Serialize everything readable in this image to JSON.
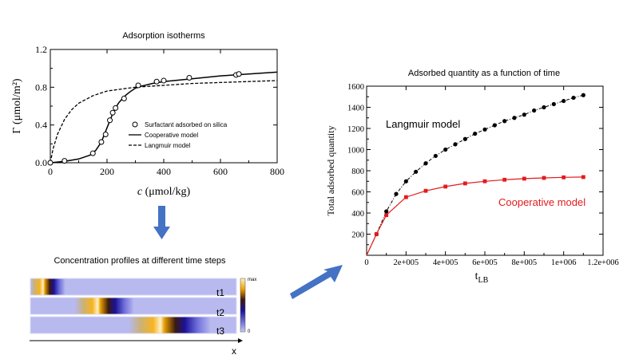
{
  "colors": {
    "arrow": "#4472c4",
    "cooperative": "#e31a1c",
    "langmuir": "#000000",
    "band_bg": "#b7b9ef",
    "peak_dark": "#1a1196",
    "peak_hot": "#f2a000"
  },
  "left_chart": {
    "title": "Adsorption isotherms",
    "ylabel": "Γ (μmol/m²)",
    "xlabel_italic": "c",
    "xlabel_rest": " (μmol/kg)",
    "xticks": [
      "0",
      "200",
      "400",
      "600",
      "800"
    ],
    "yticks": [
      "0.0",
      "0.4",
      "0.8",
      "1.2"
    ],
    "legend": [
      {
        "label": "Surfactant adsorbed on silica",
        "style": "circle"
      },
      {
        "label": "Cooperative model",
        "style": "solid"
      },
      {
        "label": "Langmuir model",
        "style": "dashed"
      }
    ]
  },
  "right_chart": {
    "title": "Adsorbed quantity as a function of time",
    "ylabel": "Total adsorbed quantity",
    "xlabel_main": "t",
    "xlabel_sub": "LB",
    "xticks": [
      "0",
      "2e+005",
      "4e+005",
      "6e+005",
      "8e+005",
      "1e+006",
      "1.2e+006"
    ],
    "yticks": [
      "200",
      "400",
      "600",
      "800",
      "1000",
      "1200",
      "1400",
      "1600"
    ],
    "annotation_langmuir": "Langmuir model",
    "annotation_cooperative": "Cooperative model"
  },
  "profiles": {
    "title": "Concentration profiles at different time steps",
    "labels": [
      "t1",
      "t2",
      "t3"
    ],
    "colorbar_max": "max",
    "colorbar_min": "0",
    "axis_label": "x",
    "peak_positions": [
      0.07,
      0.34,
      0.65
    ]
  },
  "chart_data": [
    {
      "type": "scatter",
      "title": "Adsorption isotherms",
      "xlabel": "c (μmol/kg)",
      "ylabel": "Γ (μmol/m²)",
      "xlim": [
        0,
        800
      ],
      "ylim": [
        0,
        1.2
      ],
      "series": [
        {
          "name": "Surfactant adsorbed on silica",
          "x": [
            0,
            50,
            150,
            180,
            195,
            210,
            220,
            230,
            260,
            310,
            375,
            400,
            490,
            655,
            665
          ],
          "y": [
            0.0,
            0.02,
            0.1,
            0.22,
            0.3,
            0.45,
            0.53,
            0.58,
            0.68,
            0.82,
            0.86,
            0.87,
            0.9,
            0.93,
            0.94
          ]
        },
        {
          "name": "Cooperative model",
          "x": [
            0,
            50,
            100,
            140,
            160,
            180,
            200,
            220,
            240,
            260,
            280,
            300,
            320,
            360,
            400,
            500,
            600,
            700,
            800
          ],
          "y": [
            0.0,
            0.015,
            0.04,
            0.08,
            0.13,
            0.22,
            0.37,
            0.52,
            0.63,
            0.7,
            0.75,
            0.79,
            0.81,
            0.84,
            0.86,
            0.89,
            0.92,
            0.94,
            0.96
          ]
        },
        {
          "name": "Langmuir model",
          "x": [
            0,
            10,
            25,
            50,
            75,
            100,
            150,
            200,
            300,
            400,
            500,
            600,
            700,
            800
          ],
          "y": [
            0.0,
            0.15,
            0.3,
            0.46,
            0.56,
            0.63,
            0.71,
            0.76,
            0.8,
            0.82,
            0.84,
            0.85,
            0.86,
            0.87
          ]
        }
      ]
    },
    {
      "type": "line",
      "title": "Adsorbed quantity as a function of time",
      "xlabel": "tLB",
      "ylabel": "Total adsorbed quantity",
      "xlim": [
        0,
        1200000
      ],
      "ylim": [
        0,
        1600
      ],
      "series": [
        {
          "name": "Langmuir model",
          "x": [
            0,
            50000,
            100000,
            150000,
            200000,
            250000,
            300000,
            350000,
            400000,
            450000,
            500000,
            550000,
            600000,
            650000,
            700000,
            750000,
            800000,
            850000,
            900000,
            950000,
            1000000,
            1050000,
            1100000
          ],
          "y": [
            0,
            200,
            415,
            580,
            700,
            790,
            870,
            940,
            1000,
            1050,
            1100,
            1150,
            1190,
            1230,
            1270,
            1300,
            1330,
            1370,
            1400,
            1430,
            1460,
            1490,
            1515
          ]
        },
        {
          "name": "Cooperative model",
          "x": [
            0,
            50000,
            100000,
            200000,
            300000,
            400000,
            500000,
            600000,
            700000,
            800000,
            900000,
            1000000,
            1100000
          ],
          "y": [
            0,
            200,
            380,
            550,
            610,
            650,
            680,
            700,
            715,
            725,
            732,
            737,
            740
          ]
        }
      ]
    }
  ]
}
